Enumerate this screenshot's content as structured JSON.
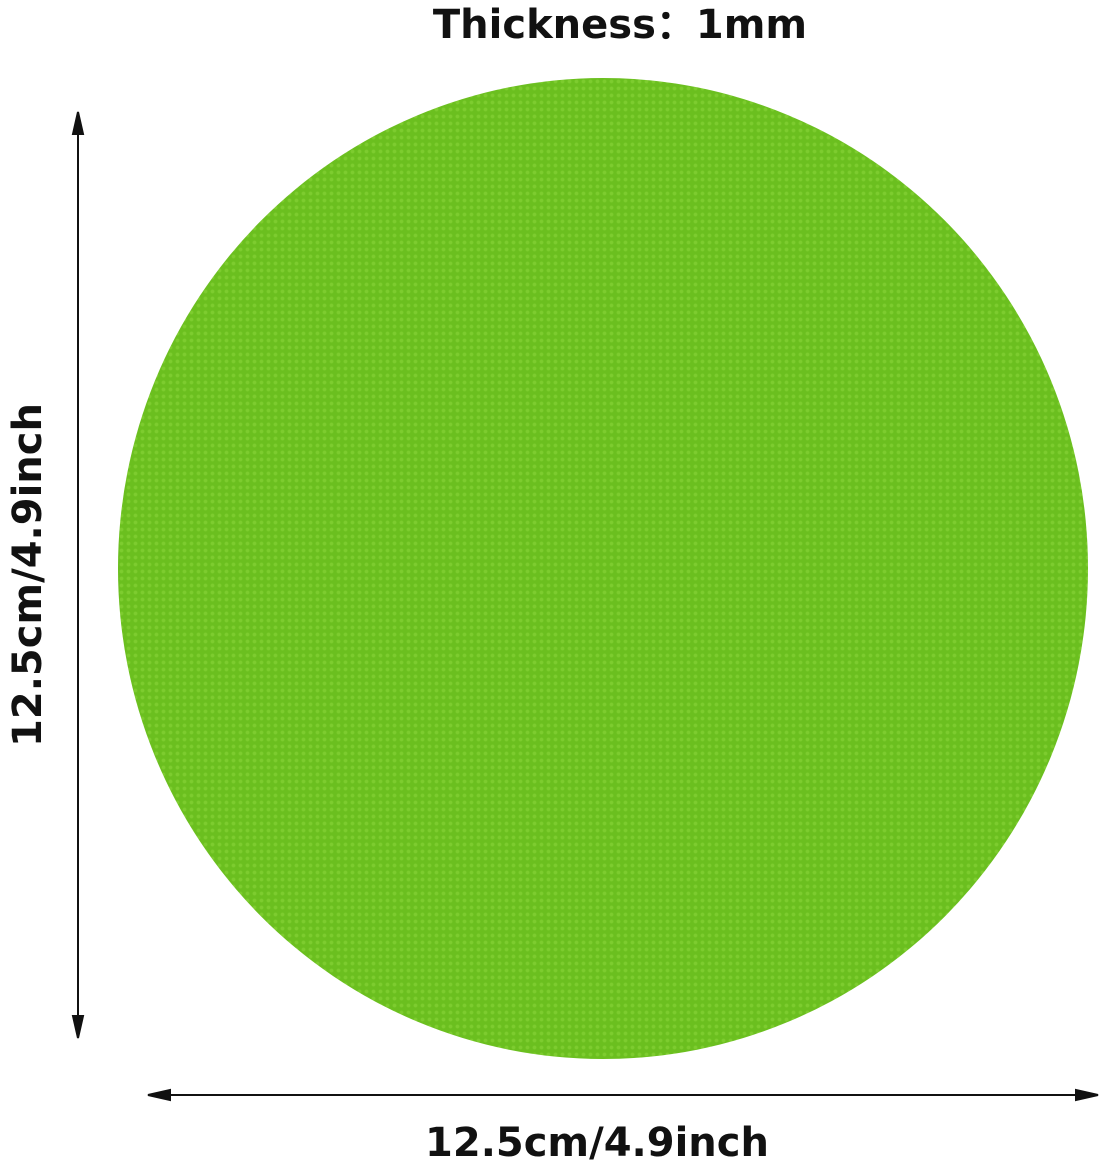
{
  "title": "Thickness：1mm",
  "product": {
    "shape": "circle",
    "color": "#6bbf1f"
  },
  "dimensions": {
    "height_label": "12.5cm/4.9inch",
    "width_label": "12.5cm/4.9inch"
  }
}
